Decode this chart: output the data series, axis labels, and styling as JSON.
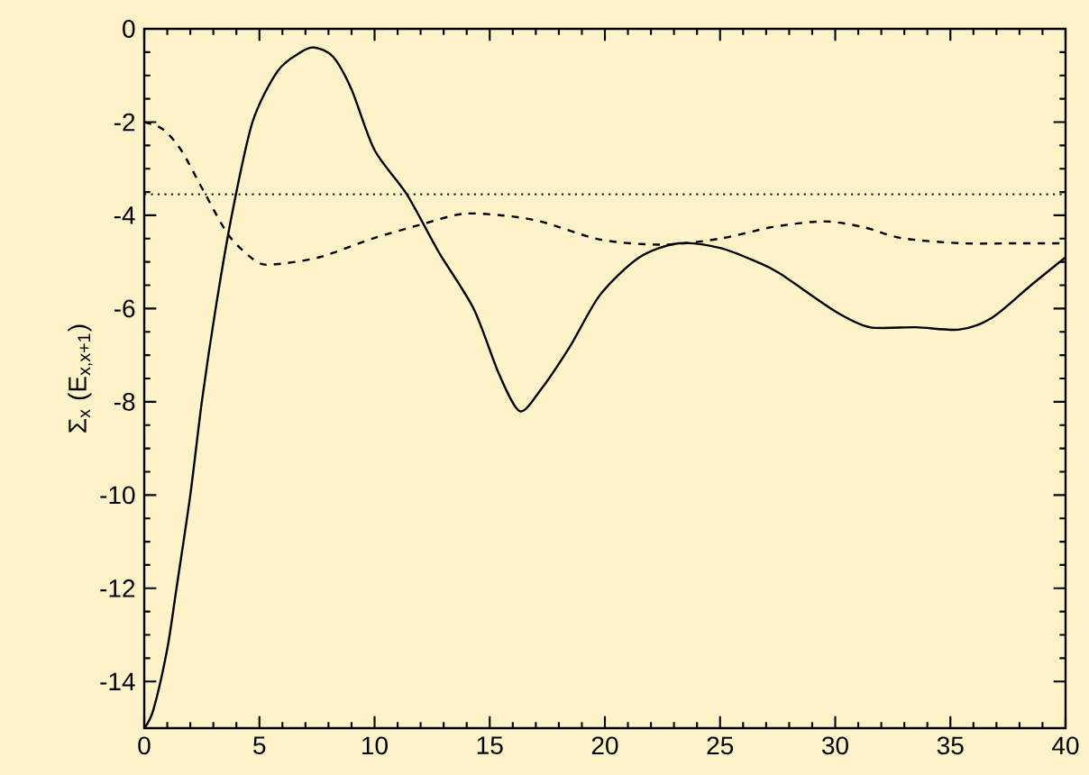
{
  "chart_data": {
    "type": "line",
    "ylabel": "Σ$_{x}$ (E$_{x,x+1}$)",
    "xlim": [
      0,
      40
    ],
    "ylim": [
      -15,
      0
    ],
    "xticks": [
      0,
      5,
      10,
      15,
      20,
      25,
      30,
      35,
      40
    ],
    "yticks": [
      -14,
      -12,
      -10,
      -8,
      -6,
      -4,
      -2,
      0
    ],
    "series": [
      {
        "color": "#000000",
        "line_style": "solid",
        "x": [
          0,
          0.4,
          1.0,
          1.4,
          2.0,
          2.5,
          3.1,
          3.8,
          4.7,
          5.8,
          6.8,
          7.4,
          8.2,
          9.0,
          10.0,
          11.4,
          12.8,
          14.3,
          15.4,
          16.3,
          17.2,
          18.5,
          19.8,
          21.5,
          23.2,
          25.0,
          26.6,
          27.6,
          30.0,
          31.5,
          33.5,
          35.4,
          36.8,
          38.5,
          40.0
        ],
        "values": [
          -15,
          -14.6,
          -13.3,
          -12,
          -10,
          -8,
          -6,
          -4,
          -2,
          -0.9,
          -0.5,
          -0.4,
          -0.6,
          -1.3,
          -2.6,
          -3.55,
          -4.8,
          -6,
          -7.4,
          -8.2,
          -7.75,
          -6.8,
          -5.7,
          -4.9,
          -4.6,
          -4.7,
          -5.0,
          -5.25,
          -6.06,
          -6.4,
          -6.4,
          -6.45,
          -6.2,
          -5.5,
          -4.9
        ]
      },
      {
        "color": "#000000",
        "line_style": "dashed",
        "x": [
          0,
          0.8,
          1.6,
          2.6,
          3.7,
          4.9,
          5.7,
          7.6,
          9.9,
          12.0,
          13.8,
          15.5,
          17.2,
          19.8,
          22.5,
          25.0,
          27.3,
          29.5,
          31.2,
          32.9,
          35.5,
          38.0,
          40.0
        ],
        "values": [
          -2,
          -2.15,
          -2.6,
          -3.5,
          -4.45,
          -5.0,
          -5.05,
          -4.9,
          -4.5,
          -4.2,
          -3.97,
          -4.0,
          -4.13,
          -4.52,
          -4.63,
          -4.5,
          -4.25,
          -4.13,
          -4.25,
          -4.49,
          -4.6,
          -4.6,
          -4.6
        ]
      }
    ],
    "ref_lines": [
      {
        "axis": "y",
        "value": -3.55,
        "color": "#000000",
        "line_style": "dotted"
      }
    ]
  }
}
